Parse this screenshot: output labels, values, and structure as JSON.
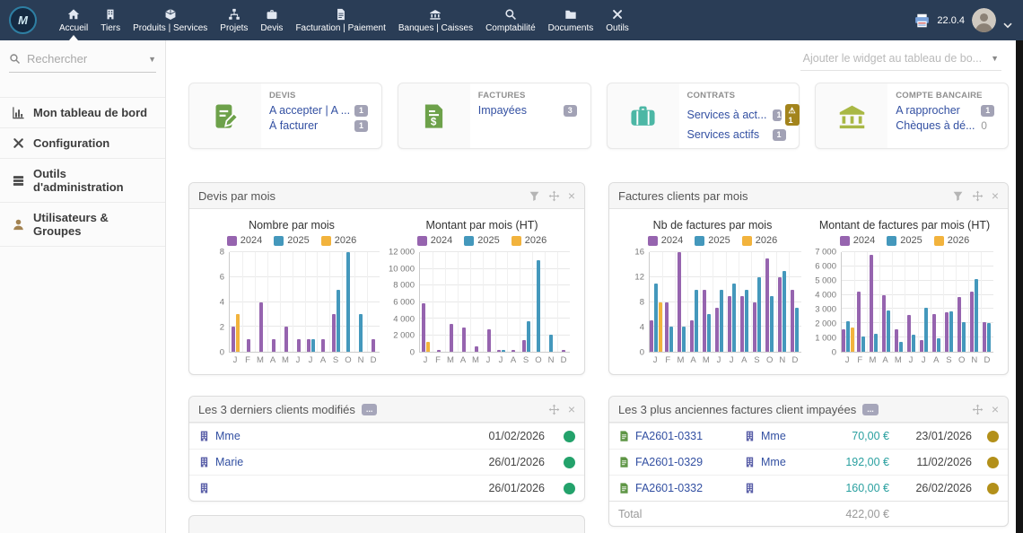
{
  "navbar": {
    "items": [
      {
        "label": "Accueil",
        "icon": "home-icon",
        "active": true
      },
      {
        "label": "Tiers",
        "icon": "building-icon",
        "active": false
      },
      {
        "label": "Produits | Services",
        "icon": "cube-icon",
        "active": false
      },
      {
        "label": "Projets",
        "icon": "project-icon",
        "active": false
      },
      {
        "label": "Devis",
        "icon": "briefcase-icon",
        "active": false
      },
      {
        "label": "Facturation | Paiement",
        "icon": "invoice-doc-icon",
        "active": false
      },
      {
        "label": "Banques | Caisses",
        "icon": "bank-icon",
        "active": false
      },
      {
        "label": "Comptabilité",
        "icon": "magnifier-icon",
        "active": false
      },
      {
        "label": "Documents",
        "icon": "folder-icon",
        "active": false
      },
      {
        "label": "Outils",
        "icon": "tools-icon",
        "active": false
      }
    ],
    "version": "22.0.4"
  },
  "sidebar": {
    "search_placeholder": "Rechercher",
    "items": [
      {
        "label": "Mon tableau de bord",
        "icon": "barchart-icon",
        "icon_color": "#4d4d4d"
      },
      {
        "label": "Configuration",
        "icon": "tools-icon",
        "icon_color": "#4d4d4d"
      },
      {
        "label": "Outils d'administration",
        "icon": "server-icon",
        "icon_color": "#4d4d4d"
      },
      {
        "label": "Utilisateurs & Groupes",
        "icon": "user-icon",
        "icon_color": "#a38352"
      }
    ]
  },
  "main": {
    "add_widget_label": "Ajouter le widget au tableau de bo...",
    "summary_boxes": [
      {
        "title": "DEVIS",
        "icon": "quote-icon",
        "rows": [
          {
            "label": "A accepter | A ...",
            "badge": "1"
          },
          {
            "label": "À facturer",
            "badge": "1"
          }
        ]
      },
      {
        "title": "FACTURES",
        "icon": "bill-icon",
        "rows": [
          {
            "label": "Impayées",
            "badge": "3"
          }
        ]
      },
      {
        "title": "CONTRATS",
        "icon": "contract-icon",
        "rows": [
          {
            "label": "Services à act...",
            "badge": "1",
            "warn": "1"
          },
          {
            "label": "Services actifs",
            "badge": "1"
          }
        ]
      },
      {
        "title": "COMPTE BANCAIRE",
        "icon": "bank-green-icon",
        "rows": [
          {
            "label": "A rapprocher",
            "badge": "1"
          },
          {
            "label": "Chèques à dé...",
            "plain": "0"
          }
        ]
      }
    ],
    "chart_widgets": [
      {
        "title": "Devis par mois"
      },
      {
        "title": "Factures clients par mois"
      }
    ],
    "clients_widget": {
      "title": "Les 3 derniers clients modifiés",
      "more_badge": "...",
      "rows": [
        {
          "name": "Mme",
          "date": "01/02/2026",
          "status_color": "#23a26b"
        },
        {
          "name": "Marie",
          "date": "26/01/2026",
          "status_color": "#23a26b"
        },
        {
          "name": "",
          "date": "26/01/2026",
          "status_color": "#23a26b"
        }
      ]
    },
    "invoices_widget": {
      "title": "Les 3 plus anciennes factures client impayées",
      "more_badge": "...",
      "rows": [
        {
          "ref": "FA2601-0331",
          "client": "Mme",
          "amount": "70,00 €",
          "date": "23/01/2026",
          "status_color": "#b3901a"
        },
        {
          "ref": "FA2601-0329",
          "client": "Mme",
          "amount": "192,00 €",
          "date": "11/02/2026",
          "status_color": "#b3901a"
        },
        {
          "ref": "FA2601-0332",
          "client": "",
          "amount": "160,00 €",
          "date": "26/02/2026",
          "status_color": "#b3901a"
        }
      ],
      "total_label": "Total",
      "total_amount": "422,00 €"
    }
  },
  "chart_data": [
    {
      "type": "bar",
      "widget_index": 0,
      "title": "Nombre par mois",
      "categories": [
        "J",
        "F",
        "M",
        "A",
        "M",
        "J",
        "J",
        "A",
        "S",
        "O",
        "N",
        "D"
      ],
      "series": [
        {
          "name": "2024",
          "color": "#9664af",
          "values": [
            2,
            1,
            4,
            1,
            2,
            1,
            1,
            1,
            3,
            0,
            0,
            1
          ]
        },
        {
          "name": "2025",
          "color": "#4498bc",
          "values": [
            0,
            0,
            0,
            0,
            0,
            0,
            1,
            0,
            5,
            8,
            3,
            0
          ]
        },
        {
          "name": "2026",
          "color": "#f2b33d",
          "values": [
            3,
            0,
            0,
            0,
            0,
            0,
            0,
            0,
            0,
            0,
            0,
            0
          ]
        }
      ],
      "ylim": [
        0,
        8
      ],
      "yticks": [
        0,
        2,
        4,
        6,
        8
      ],
      "ytick_labels": [
        "0",
        "2",
        "4",
        "6",
        "8"
      ],
      "grid": true,
      "legend_position": "top"
    },
    {
      "type": "bar",
      "widget_index": 0,
      "title": "Montant par mois (HT)",
      "categories": [
        "J",
        "F",
        "M",
        "A",
        "M",
        "J",
        "J",
        "A",
        "S",
        "O",
        "N",
        "D"
      ],
      "series": [
        {
          "name": "2024",
          "color": "#9664af",
          "values": [
            5800,
            200,
            3400,
            2900,
            700,
            2700,
            150,
            200,
            1400,
            0,
            0,
            200
          ]
        },
        {
          "name": "2025",
          "color": "#4498bc",
          "values": [
            0,
            0,
            0,
            0,
            0,
            0,
            150,
            0,
            3700,
            11000,
            2100,
            0
          ]
        },
        {
          "name": "2026",
          "color": "#f2b33d",
          "values": [
            1200,
            0,
            0,
            0,
            0,
            0,
            0,
            0,
            0,
            0,
            0,
            0
          ]
        }
      ],
      "ylim": [
        0,
        12000
      ],
      "yticks": [
        0,
        2000,
        4000,
        6000,
        8000,
        10000,
        12000
      ],
      "ytick_labels": [
        "0",
        "2 000",
        "4 000",
        "6 000",
        "8 000",
        "10 000",
        "12 000"
      ],
      "grid": true,
      "legend_position": "top"
    },
    {
      "type": "bar",
      "widget_index": 1,
      "title": "Nb de factures par mois",
      "categories": [
        "J",
        "F",
        "M",
        "A",
        "M",
        "J",
        "J",
        "A",
        "S",
        "O",
        "N",
        "D"
      ],
      "series": [
        {
          "name": "2024",
          "color": "#9664af",
          "values": [
            5,
            8,
            16,
            5,
            10,
            7,
            9,
            9,
            8,
            15,
            12,
            10
          ]
        },
        {
          "name": "2025",
          "color": "#4498bc",
          "values": [
            11,
            4,
            4,
            10,
            6,
            10,
            11,
            10,
            12,
            9,
            13,
            7
          ]
        },
        {
          "name": "2026",
          "color": "#f2b33d",
          "values": [
            8,
            0,
            0,
            0,
            0,
            0,
            0,
            0,
            0,
            0,
            0,
            0
          ]
        }
      ],
      "ylim": [
        0,
        16
      ],
      "yticks": [
        0,
        4,
        8,
        12,
        16
      ],
      "ytick_labels": [
        "0",
        "4",
        "8",
        "12",
        "16"
      ],
      "grid": true,
      "legend_position": "top"
    },
    {
      "type": "bar",
      "widget_index": 1,
      "title": "Montant de factures par mois (HT)",
      "categories": [
        "J",
        "F",
        "M",
        "A",
        "M",
        "J",
        "J",
        "A",
        "S",
        "O",
        "N",
        "D"
      ],
      "series": [
        {
          "name": "2024",
          "color": "#9664af",
          "values": [
            1550,
            4250,
            6800,
            3950,
            1600,
            2600,
            800,
            2650,
            2750,
            3850,
            4250,
            2100
          ]
        },
        {
          "name": "2025",
          "color": "#4498bc",
          "values": [
            2150,
            1100,
            1250,
            2900,
            700,
            1200,
            3100,
            950,
            2850,
            2100,
            5100,
            2000
          ]
        },
        {
          "name": "2026",
          "color": "#f2b33d",
          "values": [
            1700,
            0,
            0,
            0,
            0,
            0,
            0,
            0,
            0,
            0,
            0,
            0
          ]
        }
      ],
      "ylim": [
        0,
        7000
      ],
      "yticks": [
        0,
        1000,
        2000,
        3000,
        4000,
        5000,
        6000,
        7000
      ],
      "ytick_labels": [
        "0",
        "1 000",
        "2 000",
        "3 000",
        "4 000",
        "5 000",
        "6 000",
        "7 000"
      ],
      "grid": true,
      "legend_position": "top"
    }
  ],
  "colors": {
    "navbar_bg": "#2a3d56",
    "link": "#3350a2",
    "amount": "#2aa0a0",
    "status_green": "#23a26b",
    "status_gold": "#b3901a",
    "badge_gray": "#a2a2b5",
    "badge_warn": "#a3841c",
    "series_2024": "#9664af",
    "series_2025": "#4498bc",
    "series_2026": "#f2b33d"
  }
}
